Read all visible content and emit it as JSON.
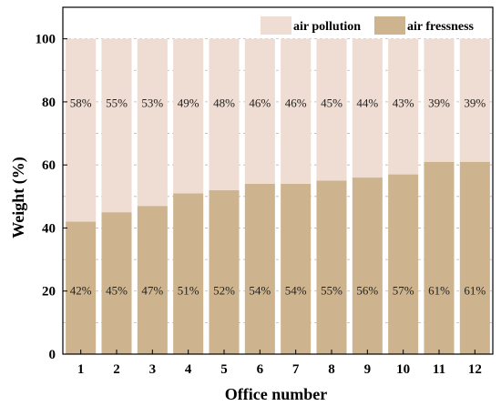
{
  "chart_data": {
    "type": "bar",
    "stacked": true,
    "categories": [
      "1",
      "2",
      "3",
      "4",
      "5",
      "6",
      "7",
      "8",
      "9",
      "10",
      "11",
      "12"
    ],
    "series": [
      {
        "name": "air fressness",
        "values": [
          42,
          45,
          47,
          51,
          52,
          54,
          54,
          55,
          56,
          57,
          61,
          61
        ],
        "labels": [
          "42%",
          "45%",
          "47%",
          "51%",
          "52%",
          "54%",
          "54%",
          "55%",
          "56%",
          "57%",
          "61%",
          "61%"
        ],
        "color": "#CDB48E"
      },
      {
        "name": "air pollution",
        "values": [
          58,
          55,
          53,
          49,
          48,
          46,
          46,
          45,
          44,
          43,
          39,
          39
        ],
        "labels": [
          "58%",
          "55%",
          "53%",
          "49%",
          "48%",
          "46%",
          "46%",
          "45%",
          "44%",
          "43%",
          "39%",
          "39%"
        ],
        "color": "#EFDCD2"
      }
    ],
    "xlabel": "Office number",
    "ylabel": "Weight (%)",
    "ylim": [
      0,
      110
    ],
    "yticks": [
      "0",
      "20",
      "40",
      "60",
      "80",
      "100"
    ],
    "grid": "horizontal dashed",
    "legend_position": "top-right"
  }
}
